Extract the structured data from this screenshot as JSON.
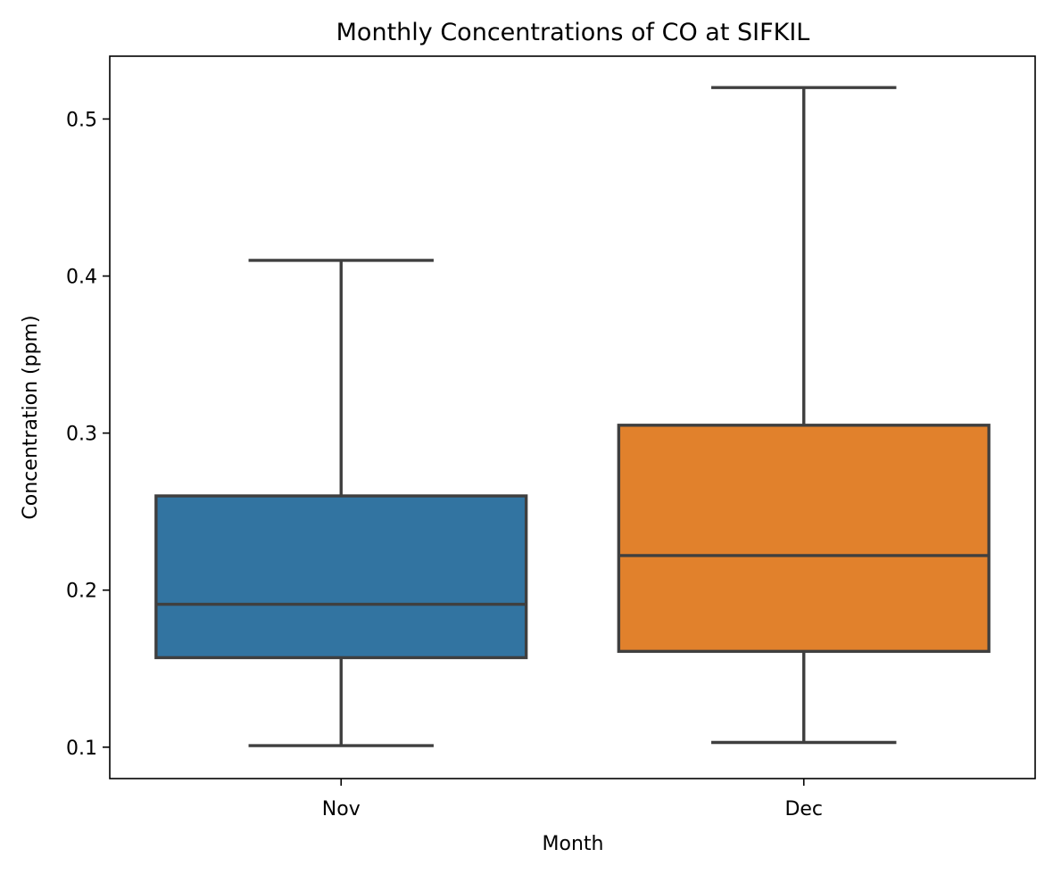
{
  "chart_data": {
    "type": "box",
    "title": "Monthly Concentrations of CO at SIFKIL",
    "xlabel": "Month",
    "ylabel": "Concentration (ppm)",
    "ylim": [
      0.08,
      0.54
    ],
    "yticks": [
      0.1,
      0.2,
      0.3,
      0.4,
      0.5
    ],
    "ytick_labels": [
      "0.1",
      "0.2",
      "0.3",
      "0.4",
      "0.5"
    ],
    "grid": false,
    "legend": "none",
    "categories": [
      "Nov",
      "Dec"
    ],
    "boxes": [
      {
        "category": "Nov",
        "whisker_low": 0.101,
        "q1": 0.157,
        "median": 0.191,
        "q3": 0.26,
        "whisker_high": 0.41,
        "color": "#3274a1"
      },
      {
        "category": "Dec",
        "whisker_low": 0.103,
        "q1": 0.161,
        "median": 0.222,
        "q3": 0.305,
        "whisker_high": 0.52,
        "color": "#e1812c"
      }
    ],
    "line_color": "#3f3f3f"
  }
}
